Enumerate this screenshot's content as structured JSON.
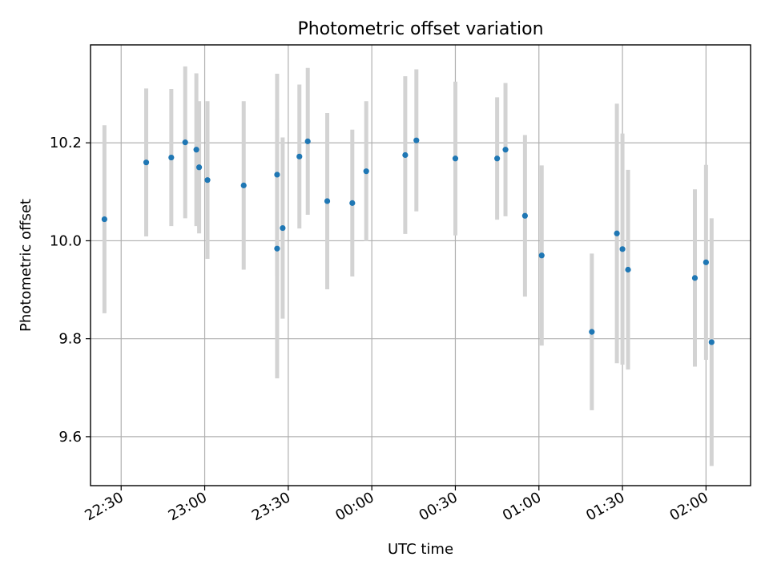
{
  "chart_data": {
    "type": "scatter",
    "title": "Photometric offset variation",
    "xlabel": "UTC time",
    "ylabel": "Photometric offset",
    "x_axis_type": "time",
    "xlim": [
      "2023-01-01T22:19:00",
      "2023-01-02T02:16:00"
    ],
    "ylim": [
      9.5,
      10.4
    ],
    "yticks": [
      9.6,
      9.8,
      10.0,
      10.2
    ],
    "ytick_labels": [
      "9.6",
      "9.8",
      "10.0",
      "10.2"
    ],
    "xticks": [
      "2023-01-01T22:30:00",
      "2023-01-01T23:00:00",
      "2023-01-01T23:30:00",
      "2023-01-02T00:00:00",
      "2023-01-02T00:30:00",
      "2023-01-02T01:00:00",
      "2023-01-02T01:30:00",
      "2023-01-02T02:00:00"
    ],
    "xtick_labels": [
      "22:30",
      "23:00",
      "23:30",
      "00:00",
      "00:30",
      "01:00",
      "01:30",
      "02:00"
    ],
    "grid": true,
    "legend": "none",
    "marker_color": "#1f77b4",
    "errorbar_color": "#d3d3d3",
    "points": [
      {
        "t": "2023-01-01T22:24:00",
        "y": 10.044,
        "yerr": 0.192
      },
      {
        "t": "2023-01-01T22:39:00",
        "y": 10.16,
        "yerr": 0.151
      },
      {
        "t": "2023-01-01T22:48:00",
        "y": 10.17,
        "yerr": 0.14
      },
      {
        "t": "2023-01-01T22:53:00",
        "y": 10.201,
        "yerr": 0.155
      },
      {
        "t": "2023-01-01T22:57:00",
        "y": 10.186,
        "yerr": 0.156
      },
      {
        "t": "2023-01-01T22:58:00",
        "y": 10.15,
        "yerr": 0.135
      },
      {
        "t": "2023-01-01T23:01:00",
        "y": 10.124,
        "yerr": 0.161
      },
      {
        "t": "2023-01-01T23:14:00",
        "y": 10.113,
        "yerr": 0.172
      },
      {
        "t": "2023-01-01T23:26:00",
        "y": 10.135,
        "yerr": 0.206
      },
      {
        "t": "2023-01-01T23:26:00",
        "y": 9.984,
        "yerr": 0.265
      },
      {
        "t": "2023-01-01T23:28:00",
        "y": 10.026,
        "yerr": 0.185
      },
      {
        "t": "2023-01-01T23:34:00",
        "y": 10.172,
        "yerr": 0.147
      },
      {
        "t": "2023-01-01T23:37:00",
        "y": 10.203,
        "yerr": 0.15
      },
      {
        "t": "2023-01-01T23:44:00",
        "y": 10.081,
        "yerr": 0.18
      },
      {
        "t": "2023-01-01T23:53:00",
        "y": 10.077,
        "yerr": 0.15
      },
      {
        "t": "2023-01-01T23:58:00",
        "y": 10.142,
        "yerr": 0.143
      },
      {
        "t": "2023-01-02T00:12:00",
        "y": 10.175,
        "yerr": 0.161
      },
      {
        "t": "2023-01-02T00:16:00",
        "y": 10.205,
        "yerr": 0.145
      },
      {
        "t": "2023-01-02T00:30:00",
        "y": 10.168,
        "yerr": 0.157
      },
      {
        "t": "2023-01-02T00:45:00",
        "y": 10.168,
        "yerr": 0.125
      },
      {
        "t": "2023-01-02T00:48:00",
        "y": 10.186,
        "yerr": 0.136
      },
      {
        "t": "2023-01-02T00:55:00",
        "y": 10.051,
        "yerr": 0.165
      },
      {
        "t": "2023-01-02T01:01:00",
        "y": 9.97,
        "yerr": 0.184
      },
      {
        "t": "2023-01-02T01:19:00",
        "y": 9.814,
        "yerr": 0.16
      },
      {
        "t": "2023-01-02T01:28:00",
        "y": 10.015,
        "yerr": 0.265
      },
      {
        "t": "2023-01-02T01:30:00",
        "y": 9.983,
        "yerr": 0.236
      },
      {
        "t": "2023-01-02T01:32:00",
        "y": 9.941,
        "yerr": 0.204
      },
      {
        "t": "2023-01-02T01:56:00",
        "y": 9.924,
        "yerr": 0.181
      },
      {
        "t": "2023-01-02T02:00:00",
        "y": 9.956,
        "yerr": 0.199
      },
      {
        "t": "2023-01-02T02:02:00",
        "y": 9.793,
        "yerr": 0.253
      }
    ]
  }
}
